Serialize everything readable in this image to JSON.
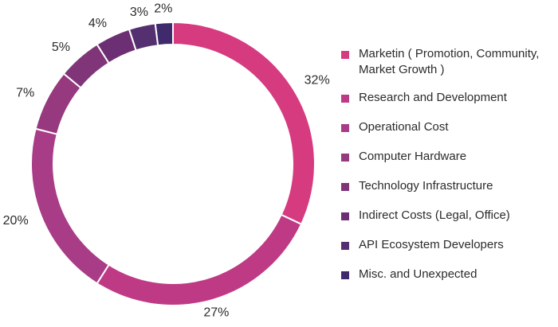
{
  "chart_data": {
    "type": "pie",
    "style": "donut",
    "categories": [
      "Marketin ( Promotion, Community, Market Growth )",
      "Research and Development",
      "Operational Cost",
      "Computer Hardware",
      "Technology Infrastructure",
      "Indirect Costs (Legal, Office)",
      "API Ecosystem Developers",
      "Misc. and Unexpected"
    ],
    "values": [
      32,
      27,
      20,
      7,
      5,
      4,
      3,
      2
    ],
    "data_labels": [
      "32%",
      "27%",
      "20%",
      "7%",
      "5%",
      "4%",
      "3%",
      "2%"
    ],
    "colors": [
      "#d63b80",
      "#bf3a85",
      "#a83c86",
      "#96397f",
      "#7f3578",
      "#6c2f73",
      "#553070",
      "#3f2a6c"
    ],
    "legend_position": "right",
    "start_angle": "top",
    "direction": "clockwise"
  }
}
